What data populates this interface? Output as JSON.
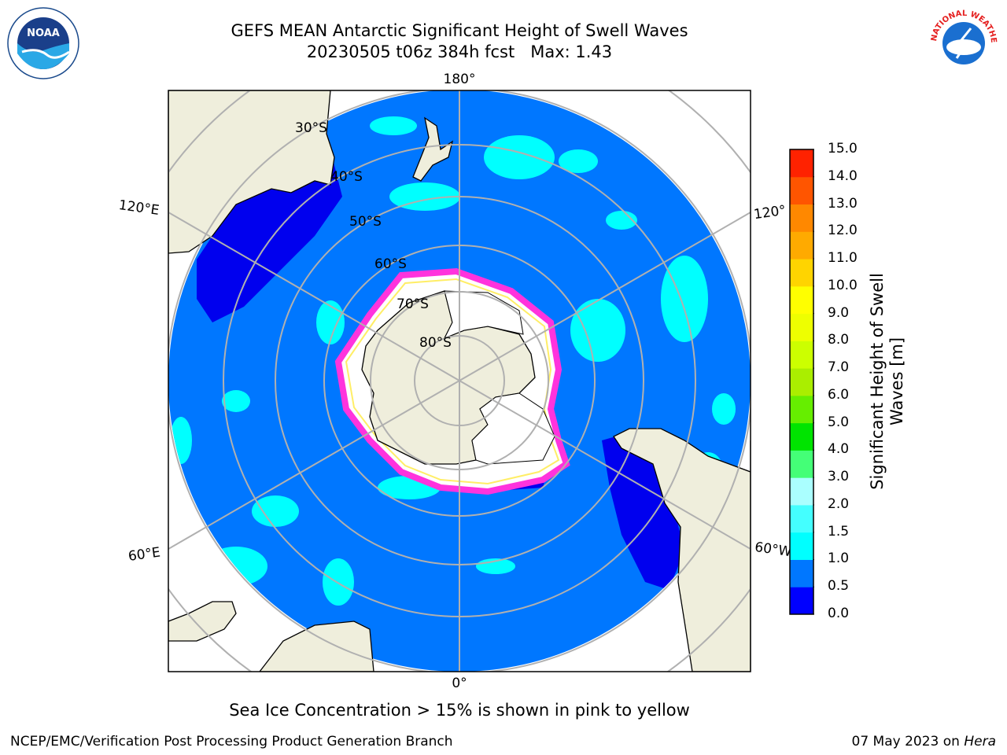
{
  "header": {
    "title_line1": "GEFS MEAN Antarctic Significant Height of Swell Waves",
    "title_line2": "20230505 t06z 384h fcst   Max: 1.43"
  },
  "map": {
    "longitude_labels": {
      "top": "180°",
      "bottom": "0°",
      "left_upper": "120°E",
      "left_lower": "60°E",
      "right_upper": "120°",
      "right_lower": "60°W"
    },
    "latitude_labels": [
      "30°S",
      "40°S",
      "50°S",
      "60°S",
      "70°S",
      "80°S"
    ],
    "colors": {
      "ocean_main": "#0077ff",
      "ocean_low": "#0000ee",
      "ocean_mid": "#00ffff",
      "land": "#efeedc",
      "ice_edge": "#ff33dd",
      "ice_inner": "#ffff66",
      "grid": "#b0b0b0"
    }
  },
  "colorbar": {
    "title_line1": "Significant Height of Swell",
    "title_line2": "Waves [m]",
    "ticks": [
      "0.0",
      "0.5",
      "1.0",
      "1.5",
      "2.0",
      "3.0",
      "4.0",
      "5.0",
      "6.0",
      "7.0",
      "8.0",
      "9.0",
      "10.0",
      "11.0",
      "12.0",
      "13.0",
      "14.0",
      "15.0"
    ],
    "colors": [
      "#0000ff",
      "#0077ff",
      "#00ffff",
      "#44ffff",
      "#aaffff",
      "#44ff77",
      "#00e400",
      "#66ee00",
      "#aaee00",
      "#ccff00",
      "#eeff00",
      "#ffff00",
      "#ffd400",
      "#ffaa00",
      "#ff8800",
      "#ff5500",
      "#ff2200",
      "#ff0000"
    ]
  },
  "note": "Sea Ice Concentration > 15% is shown in pink to yellow",
  "footer": {
    "left": "NCEP/EMC/Verification Post Processing Product Generation Branch",
    "right_date": "07 May 2023 on ",
    "right_host": "Hera"
  },
  "logos": {
    "noaa_text": "NOAA",
    "nws_text": "NATIONAL WEATHER SERVICE"
  }
}
